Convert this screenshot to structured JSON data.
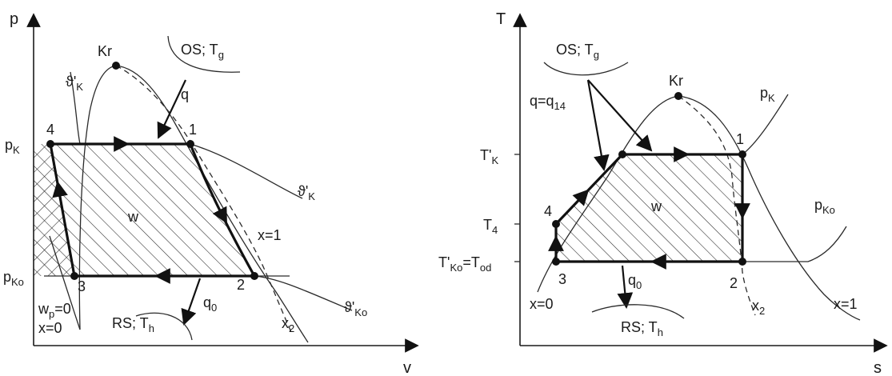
{
  "left_diagram": {
    "axis_y": "p",
    "axis_x": "v",
    "critical_point": "Kr",
    "hot_source": "OS; T",
    "hot_source_sub": "g",
    "cold_sink": "RS; T",
    "cold_sink_sub": "h",
    "heat_in": "q",
    "heat_out": "q",
    "heat_out_sub": "0",
    "work": "w",
    "pump_work": "w",
    "pump_work_sub": "p",
    "pump_work_eq": "=0",
    "quality_liquid": "x=0",
    "quality_vapor": "x=1",
    "quality_2": "x",
    "quality_2_sub": "2",
    "p_high": "p",
    "p_high_sub": "K",
    "p_low": "p",
    "p_low_sub": "Ko",
    "theta_k_left": "ϑ'",
    "theta_k_left_sub": "K",
    "theta_k_right": "ϑ'",
    "theta_k_right_sub": "K",
    "theta_ko": "ϑ'",
    "theta_ko_sub": "Ko",
    "points": [
      "1",
      "2",
      "3",
      "4"
    ]
  },
  "right_diagram": {
    "axis_y": "T",
    "axis_x": "s",
    "critical_point": "Kr",
    "hot_source": "OS; T",
    "hot_source_sub": "g",
    "cold_sink": "RS; T",
    "cold_sink_sub": "h",
    "heat_in": "q=q",
    "heat_in_sub": "14",
    "heat_out": "q",
    "heat_out_sub": "0",
    "work": "w",
    "quality_liquid": "x=0",
    "quality_vapor": "x=1",
    "quality_2": "x",
    "quality_2_sub": "2",
    "isobar_high": "p",
    "isobar_high_sub": "K",
    "isobar_low": "p",
    "isobar_low_sub": "Ko",
    "t_high": "T'",
    "t_high_sub": "K",
    "t_4": "T",
    "t_4_sub": "4",
    "t_low": "T'",
    "t_low_sub": "Ko",
    "t_low_eq": "=T",
    "t_low_eq_sub": "od",
    "points": [
      "1",
      "2",
      "3",
      "4"
    ]
  }
}
